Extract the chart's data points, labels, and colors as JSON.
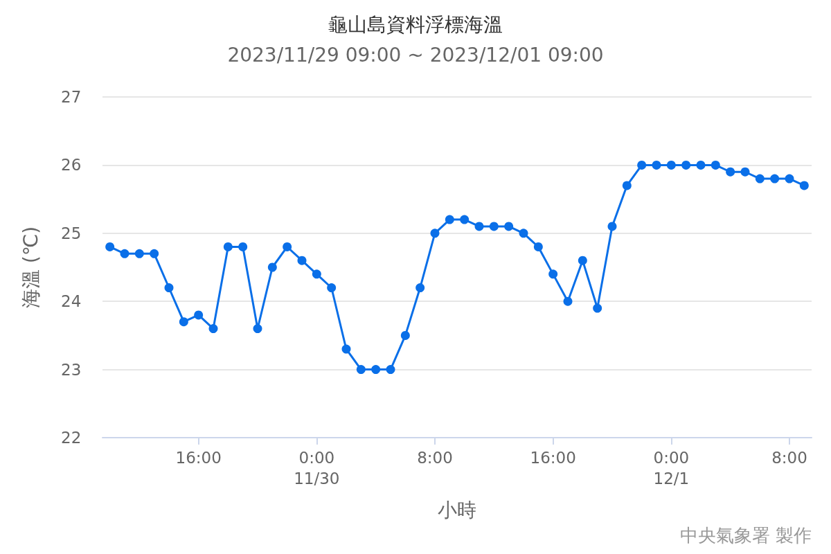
{
  "chart_data": {
    "type": "line",
    "title": "龜山島資料浮標海溫",
    "subtitle": "2023/11/29 09:00 ~ 2023/12/01 09:00",
    "xlabel": "小時",
    "ylabel": "海溫 (℃)",
    "x": [
      "2023-11-29T10:00",
      "2023-11-29T11:00",
      "2023-11-29T12:00",
      "2023-11-29T13:00",
      "2023-11-29T14:00",
      "2023-11-29T15:00",
      "2023-11-29T16:00",
      "2023-11-29T17:00",
      "2023-11-29T18:00",
      "2023-11-29T19:00",
      "2023-11-29T20:00",
      "2023-11-29T21:00",
      "2023-11-29T22:00",
      "2023-11-29T23:00",
      "2023-11-30T00:00",
      "2023-11-30T01:00",
      "2023-11-30T02:00",
      "2023-11-30T03:00",
      "2023-11-30T04:00",
      "2023-11-30T05:00",
      "2023-11-30T06:00",
      "2023-11-30T07:00",
      "2023-11-30T08:00",
      "2023-11-30T09:00",
      "2023-11-30T10:00",
      "2023-11-30T11:00",
      "2023-11-30T12:00",
      "2023-11-30T13:00",
      "2023-11-30T14:00",
      "2023-11-30T15:00",
      "2023-11-30T16:00",
      "2023-11-30T17:00",
      "2023-11-30T18:00",
      "2023-11-30T19:00",
      "2023-11-30T20:00",
      "2023-11-30T21:00",
      "2023-11-30T22:00",
      "2023-11-30T23:00",
      "2023-12-01T00:00",
      "2023-12-01T01:00",
      "2023-12-01T02:00",
      "2023-12-01T03:00",
      "2023-12-01T04:00",
      "2023-12-01T05:00",
      "2023-12-01T06:00",
      "2023-12-01T07:00",
      "2023-12-01T08:00",
      "2023-12-01T09:00"
    ],
    "series": [
      {
        "color": "#0a6fe8",
        "values": [
          24.8,
          24.7,
          24.7,
          24.7,
          24.2,
          23.7,
          23.8,
          23.6,
          24.8,
          24.8,
          23.6,
          24.5,
          24.8,
          24.6,
          24.4,
          24.2,
          23.3,
          23.0,
          23.0,
          23.0,
          23.5,
          24.2,
          25.0,
          25.2,
          25.2,
          25.1,
          25.1,
          25.1,
          25.0,
          24.8,
          24.4,
          24.0,
          24.6,
          23.9,
          25.1,
          25.7,
          26.0,
          26.0,
          26.0,
          26.0,
          26.0,
          26.0,
          25.9,
          25.9,
          25.8,
          25.8,
          25.8,
          25.7
        ]
      }
    ],
    "xlim": [
      "2023-11-29T09:30",
      "2023-12-01T09:30"
    ],
    "xticks": [
      {
        "value": "2023-11-29T16:00",
        "label": "16:00"
      },
      {
        "value": "2023-11-30T00:00",
        "label": "0:00\n11/30"
      },
      {
        "value": "2023-11-30T08:00",
        "label": "8:00"
      },
      {
        "value": "2023-11-30T16:00",
        "label": "16:00"
      },
      {
        "value": "2023-12-01T00:00",
        "label": "0:00\n12/1"
      },
      {
        "value": "2023-12-01T08:00",
        "label": "8:00"
      }
    ],
    "ylim": [
      22,
      27
    ],
    "yticks": [
      22,
      23,
      24,
      25,
      26,
      27
    ],
    "grid": "y",
    "marker": "circle",
    "line_style": "solid",
    "annotations": [
      "中央氣象署 製作"
    ]
  }
}
